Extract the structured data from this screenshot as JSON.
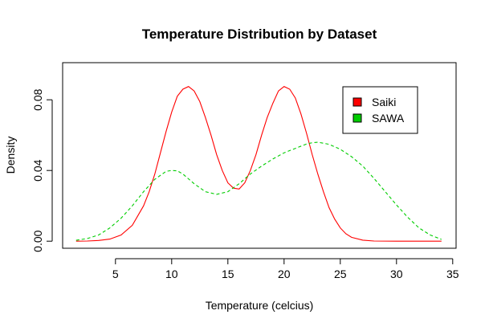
{
  "chart_data": {
    "type": "line",
    "title": "Temperature Distribution by Dataset",
    "xlabel": "Temperature (celcius)",
    "ylabel": "Density",
    "xlim": [
      0.3,
      35.3
    ],
    "ylim": [
      -0.004,
      0.101
    ],
    "x_ticks": [
      5,
      10,
      15,
      20,
      25,
      30,
      35
    ],
    "x_tick_labels": [
      "5",
      "10",
      "15",
      "20",
      "25",
      "30",
      "35"
    ],
    "y_ticks": [
      0.0,
      0.04,
      0.08
    ],
    "y_tick_labels": [
      "0.00",
      "0.04",
      "0.08"
    ],
    "grid": false,
    "legend_position": "top-right",
    "series": [
      {
        "name": "Saiki",
        "color": "#ff0000",
        "line_style": "solid",
        "x": [
          1.5,
          2.5,
          3.5,
          4.5,
          5.5,
          6.5,
          7.5,
          8.0,
          8.5,
          9.0,
          9.5,
          10.0,
          10.5,
          11.0,
          11.5,
          12.0,
          12.5,
          13.0,
          13.5,
          14.0,
          14.5,
          15.0,
          15.5,
          16.0,
          16.5,
          17.0,
          17.5,
          18.0,
          18.5,
          19.0,
          19.5,
          20.0,
          20.5,
          21.0,
          21.5,
          22.0,
          22.5,
          23.0,
          23.5,
          24.0,
          24.5,
          25.0,
          25.5,
          26.0,
          27.0,
          28.0,
          30.0,
          32.0,
          34.0
        ],
        "y": [
          0.0,
          0.0001,
          0.0004,
          0.0012,
          0.0035,
          0.009,
          0.02,
          0.028,
          0.038,
          0.05,
          0.062,
          0.073,
          0.082,
          0.086,
          0.0875,
          0.085,
          0.079,
          0.07,
          0.06,
          0.049,
          0.04,
          0.033,
          0.03,
          0.0295,
          0.033,
          0.04,
          0.049,
          0.06,
          0.07,
          0.078,
          0.085,
          0.0875,
          0.086,
          0.081,
          0.072,
          0.061,
          0.049,
          0.038,
          0.028,
          0.019,
          0.0125,
          0.0075,
          0.0042,
          0.0022,
          0.0006,
          0.0001,
          0.0,
          0.0,
          0.0
        ]
      },
      {
        "name": "SAWA",
        "color": "#00cd00",
        "line_style": "dashed",
        "x": [
          1.5,
          2.5,
          3.5,
          4.5,
          5.5,
          6.5,
          7.5,
          8.5,
          9.5,
          10.0,
          10.5,
          11.0,
          12.0,
          13.0,
          14.0,
          15.0,
          16.0,
          17.0,
          18.0,
          19.0,
          20.0,
          21.0,
          22.0,
          22.5,
          23.0,
          24.0,
          25.0,
          26.0,
          27.0,
          28.0,
          29.0,
          30.0,
          31.0,
          32.0,
          33.0,
          34.0
        ],
        "y": [
          0.0005,
          0.0015,
          0.0035,
          0.0075,
          0.013,
          0.02,
          0.028,
          0.035,
          0.0395,
          0.04,
          0.0398,
          0.038,
          0.0325,
          0.028,
          0.0265,
          0.028,
          0.0325,
          0.038,
          0.0425,
          0.0465,
          0.05,
          0.0525,
          0.055,
          0.0557,
          0.056,
          0.0548,
          0.052,
          0.0478,
          0.0425,
          0.0355,
          0.028,
          0.0205,
          0.0135,
          0.0075,
          0.0035,
          0.001
        ]
      }
    ]
  }
}
